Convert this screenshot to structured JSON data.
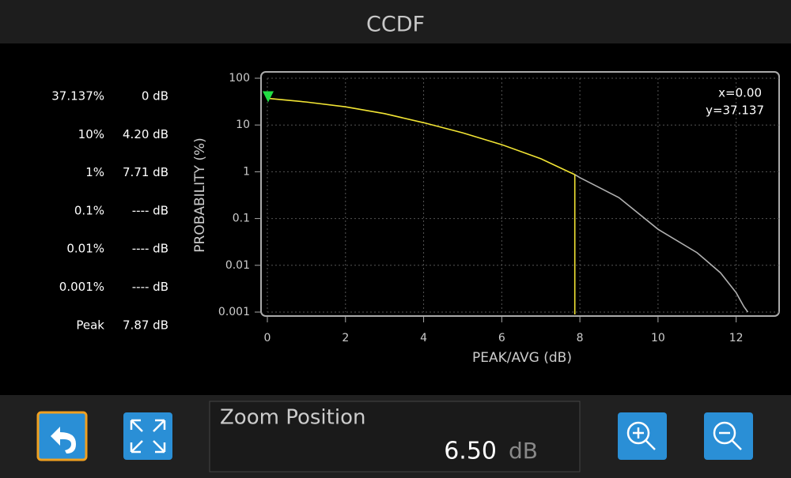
{
  "header": {
    "title": "CCDF"
  },
  "stats": {
    "rows": [
      [
        "37.137%",
        "0 dB"
      ],
      [
        "10%",
        "4.20 dB"
      ],
      [
        "1%",
        "7.71 dB"
      ],
      [
        "0.1%",
        "---- dB"
      ],
      [
        "0.01%",
        "---- dB"
      ],
      [
        "0.001%",
        "---- dB"
      ],
      [
        "Peak",
        "7.87 dB"
      ]
    ]
  },
  "chart_data": {
    "type": "line",
    "xlabel": "PEAK/AVG (dB)",
    "ylabel": "PROBABILITY (%)",
    "x": [
      0,
      1,
      2,
      3,
      4,
      5,
      6,
      7,
      7.71,
      7.87,
      8,
      9,
      10,
      11,
      11.6,
      12,
      12.2,
      12.3
    ],
    "series": [
      {
        "color": "#f2e534",
        "values": [
          37.137,
          31,
          24.5,
          17.5,
          11.2,
          6.8,
          3.8,
          1.9,
          1,
          0.87,
          null,
          null,
          null,
          null,
          null,
          null,
          null,
          null
        ]
      },
      {
        "color": "#b0b0b0",
        "values": [
          null,
          null,
          null,
          null,
          null,
          null,
          null,
          null,
          null,
          0.87,
          0.75,
          0.28,
          0.059,
          0.0186,
          0.0069,
          0.0026,
          0.0013,
          0.001
        ]
      }
    ],
    "xlim": [
      0,
      13.1
    ],
    "ylim": [
      0.001,
      100
    ],
    "yscale": "log",
    "xticks": [
      0,
      2,
      4,
      6,
      8,
      10,
      12
    ],
    "yticks": [
      100,
      10,
      1,
      0.1,
      0.01,
      0.001
    ],
    "grid": true,
    "marker_x": 7.87,
    "marker_color": "#f2e534",
    "cursor": {
      "x": 0,
      "y": 37.137,
      "color": "#22dd44",
      "label_x": "x=0.00",
      "label_y": "y=37.137"
    }
  },
  "zoom": {
    "label": "Zoom Position",
    "value": "6.50",
    "unit": "dB"
  }
}
